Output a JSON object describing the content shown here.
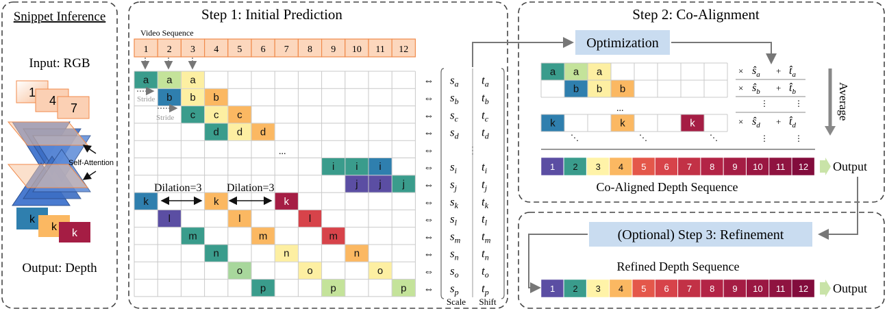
{
  "panels": {
    "snippet": {
      "title": "Snippet Inference",
      "input_label": "Input: RGB",
      "frames_in": [
        "1",
        "4",
        "7"
      ],
      "attention_label": "Self-Attention",
      "frames_out": [
        "k",
        "k",
        "k"
      ],
      "output_label": "Output: Depth"
    },
    "step1": {
      "title": "Step 1: Initial Prediction",
      "video_label": "Video Sequence",
      "frames": [
        "1",
        "2",
        "3",
        "4",
        "5",
        "6",
        "7",
        "8",
        "9",
        "10",
        "11",
        "12"
      ],
      "stride_label": "Stride",
      "dilation_label": "Dilation=3",
      "ellipsis": "..."
    },
    "scale_shift": {
      "rows": [
        {
          "s": "s",
          "s_sub": "a",
          "t": "t",
          "t_sub": "a"
        },
        {
          "s": "s",
          "s_sub": "b",
          "t": "t",
          "t_sub": "b"
        },
        {
          "s": "s",
          "s_sub": "c",
          "t": "t",
          "t_sub": "c"
        },
        {
          "s": "s",
          "s_sub": "d",
          "t": "t",
          "t_sub": "d"
        },
        {
          "s": "",
          "s_sub": "",
          "t": "",
          "t_sub": "",
          "dots": "⋮"
        },
        {
          "s": "s",
          "s_sub": "i",
          "t": "t",
          "t_sub": "i"
        },
        {
          "s": "s",
          "s_sub": "j",
          "t": "t",
          "t_sub": "j"
        },
        {
          "s": "s",
          "s_sub": "k",
          "t": "t",
          "t_sub": "k"
        },
        {
          "s": "s",
          "s_sub": "l",
          "t": "t",
          "t_sub": "l"
        },
        {
          "s": "s",
          "s_sub": "m",
          "t": "t",
          "t_sub": "m"
        },
        {
          "s": "s",
          "s_sub": "n",
          "t": "t",
          "t_sub": "n"
        },
        {
          "s": "s",
          "s_sub": "o",
          "t": "t",
          "t_sub": "o"
        },
        {
          "s": "s",
          "s_sub": "p",
          "t": "t",
          "t_sub": "p"
        }
      ],
      "scale_label": "Scale",
      "shift_label": "Shift",
      "arrow_glyph": "⇔"
    },
    "step2": {
      "title": "Step 2: Co-Alignment",
      "optimization_label": "Optimization",
      "average_label": "Average",
      "rows_ellipsis": "...",
      "weights": [
        {
          "times": "×",
          "s": "ŝ",
          "s_sub": "a",
          "plus": "+",
          "t": "t̂",
          "t_sub": "a"
        },
        {
          "times": "×",
          "s": "ŝ",
          "s_sub": "b",
          "plus": "+",
          "t": "t̂",
          "t_sub": "b"
        },
        {
          "times": "×",
          "s": "ŝ",
          "s_sub": "d",
          "plus": "+",
          "t": "t̂",
          "t_sub": "d"
        }
      ],
      "sequence_caption": "Co-Aligned Depth Sequence",
      "output_label": "Output"
    },
    "step3": {
      "title": "(Optional) Step 3: Refinement",
      "sequence_caption": "Refined Depth Sequence",
      "output_label": "Output"
    }
  },
  "depth_sequence": [
    "1",
    "2",
    "3",
    "4",
    "5",
    "6",
    "7",
    "8",
    "9",
    "10",
    "11",
    "12"
  ],
  "colors": {
    "depth_palette": [
      "#5b4ea3",
      "#3a9c8c",
      "#fff3a8",
      "#fbb862",
      "#e4574a",
      "#d7434a",
      "#c23146",
      "#b32446",
      "#a51d44",
      "#9a1742",
      "#8f1340",
      "#820c3c"
    ],
    "letter_teal": "#3a9c8c",
    "letter_green": "#c4e39a",
    "letter_yellow": "#fdefa2",
    "letter_orange": "#fbb862",
    "letter_blue": "#2f7fae",
    "letter_red": "#d7434a",
    "letter_purple": "#5b4ea3",
    "letter_maroon": "#a51d44",
    "frame_orange": "#f79a5a",
    "opt_box": "#c9dcf0"
  },
  "grid_rows": [
    {
      "letter": "a",
      "cells": [
        1,
        2,
        3
      ]
    },
    {
      "letter": "b",
      "cells": [
        2,
        3,
        4
      ]
    },
    {
      "letter": "c",
      "cells": [
        3,
        4,
        5
      ]
    },
    {
      "letter": "d",
      "cells": [
        4,
        5,
        6
      ]
    },
    {
      "letter": "",
      "cells": []
    },
    {
      "letter": "i",
      "cells": [
        9,
        10,
        11
      ]
    },
    {
      "letter": "j",
      "cells": [
        10,
        11,
        12
      ]
    },
    {
      "letter": "k",
      "cells": [
        1,
        4,
        7
      ]
    },
    {
      "letter": "l",
      "cells": [
        2,
        5,
        8
      ]
    },
    {
      "letter": "m",
      "cells": [
        3,
        6,
        9
      ]
    },
    {
      "letter": "n",
      "cells": [
        4,
        7,
        10
      ]
    },
    {
      "letter": "o",
      "cells": [
        5,
        8,
        11
      ]
    },
    {
      "letter": "p",
      "cells": [
        6,
        9,
        12
      ]
    }
  ]
}
